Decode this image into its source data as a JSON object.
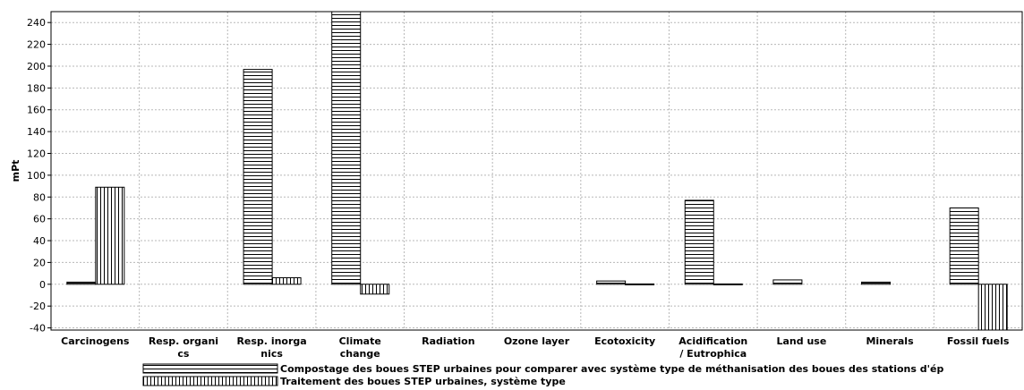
{
  "chart_data": {
    "type": "bar",
    "ylabel": "mPt",
    "xlabel": "",
    "ylim": [
      -42,
      250
    ],
    "yticks": [
      -40,
      -20,
      0,
      20,
      40,
      60,
      80,
      100,
      120,
      140,
      160,
      180,
      200,
      220,
      240
    ],
    "grid": true,
    "legend_position": "bottom",
    "categories": [
      [
        "Carcinogens"
      ],
      [
        "Resp. organi",
        "cs"
      ],
      [
        "Resp. inorga",
        "nics"
      ],
      [
        "Climate",
        "change"
      ],
      [
        "Radiation"
      ],
      [
        "Ozone layer"
      ],
      [
        "Ecotoxicity"
      ],
      [
        "Acidification",
        "/ Eutrophica"
      ],
      [
        "Land use"
      ],
      [
        "Minerals"
      ],
      [
        "Fossil fuels"
      ]
    ],
    "series": [
      {
        "name": "Compostage des boues STEP urbaines pour comparer avec système type de méthanisation des boues des stations d'ép",
        "pattern": "horizontal",
        "values": [
          2,
          0,
          197,
          250,
          0,
          0,
          3,
          77,
          4,
          2,
          70
        ]
      },
      {
        "name": "Traitement des boues STEP urbaines, système type",
        "pattern": "vertical",
        "values": [
          89,
          0,
          6,
          -9,
          0,
          0,
          0.3,
          0.3,
          0,
          0,
          -45
        ]
      }
    ]
  }
}
